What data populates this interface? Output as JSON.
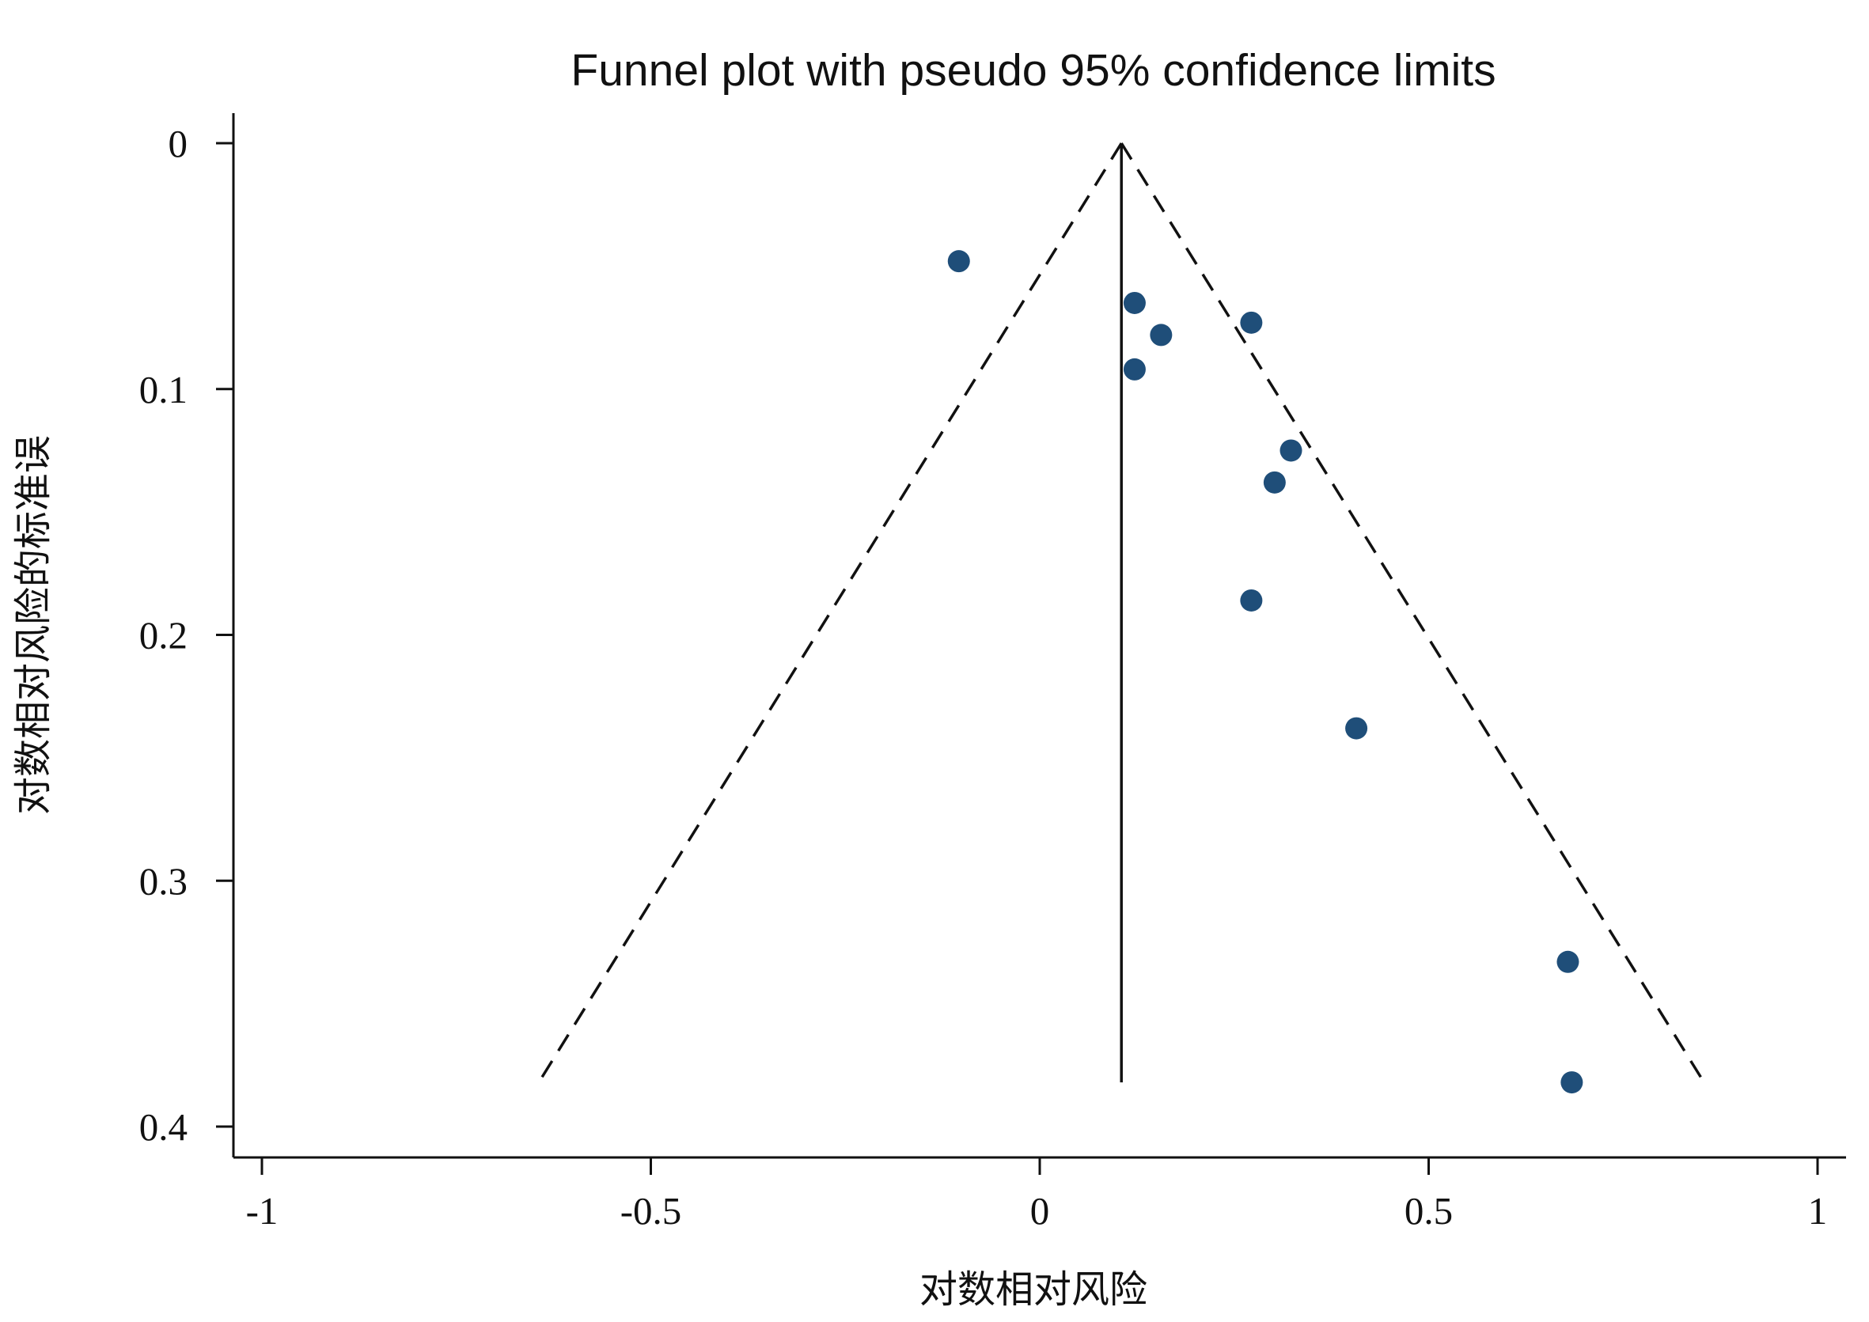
{
  "chart_data": {
    "type": "scatter",
    "title": "Funnel plot with pseudo 95% confidence limits",
    "xlabel": "对数相对风险",
    "ylabel": "对数相对风险的标准误",
    "xlim": [
      -1,
      1
    ],
    "ylim": [
      0,
      0.4
    ],
    "y_reversed": true,
    "x_ticks": [
      -1,
      -0.5,
      0,
      0.5,
      1
    ],
    "x_tick_labels": [
      "-1",
      "-0.5",
      "0",
      "0.5",
      "1"
    ],
    "y_ticks": [
      0,
      0.1,
      0.2,
      0.3,
      0.4
    ],
    "y_tick_labels": [
      "0",
      "0.1",
      "0.2",
      "0.3",
      "0.4"
    ],
    "grid": false,
    "legend": "none",
    "marker_color": "#1f4e79",
    "pooled_estimate": 0.105,
    "funnel_se_max": 0.382,
    "funnel_limits": {
      "left_at_se_max": -0.644,
      "right_at_se_max": 0.854
    },
    "points": [
      {
        "x": -0.104,
        "y": 0.048
      },
      {
        "x": 0.122,
        "y": 0.065
      },
      {
        "x": 0.156,
        "y": 0.078
      },
      {
        "x": 0.272,
        "y": 0.073
      },
      {
        "x": 0.122,
        "y": 0.092
      },
      {
        "x": 0.323,
        "y": 0.125
      },
      {
        "x": 0.302,
        "y": 0.138
      },
      {
        "x": 0.272,
        "y": 0.186
      },
      {
        "x": 0.407,
        "y": 0.238
      },
      {
        "x": 0.679,
        "y": 0.333
      },
      {
        "x": 0.684,
        "y": 0.382
      }
    ]
  }
}
